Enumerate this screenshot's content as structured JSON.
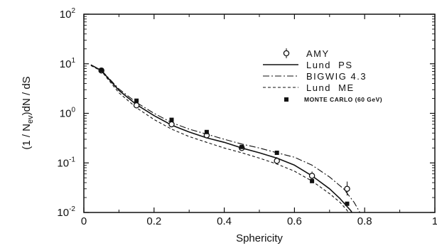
{
  "chart_data": {
    "type": "line",
    "xlabel": "Sphericity",
    "ylabel": "(1 / N_ev) dN / dS",
    "ylabel_parts": {
      "a": "(1 / N",
      "sub": "ev",
      "b": ")dN / dS"
    },
    "xlim": [
      0,
      1
    ],
    "ylim": [
      0.01,
      100
    ],
    "yscale": "log",
    "x_ticks": [
      {
        "value": 0,
        "label": "0"
      },
      {
        "value": 0.2,
        "label": "0.2"
      },
      {
        "value": 0.4,
        "label": "0.4"
      },
      {
        "value": 0.6,
        "label": "0.6"
      },
      {
        "value": 0.8,
        "label": "0.8"
      },
      {
        "value": 1.0,
        "label": "1"
      }
    ],
    "y_ticks": [
      {
        "value": 0.01,
        "base": "10",
        "exp": "-2"
      },
      {
        "value": 0.1,
        "base": "10",
        "exp": "-1"
      },
      {
        "value": 1,
        "base": "10",
        "exp": "0"
      },
      {
        "value": 10,
        "base": "10",
        "exp": "1"
      },
      {
        "value": 100,
        "base": "10",
        "exp": "2"
      }
    ],
    "grid": false,
    "legend_position": "top-right",
    "series": [
      {
        "name": "AMY",
        "kind": "data-open-circle",
        "x": [
          0.05,
          0.15,
          0.25,
          0.35,
          0.45,
          0.55,
          0.65,
          0.75
        ],
        "y": [
          7.3,
          1.45,
          0.6,
          0.36,
          0.2,
          0.11,
          0.055,
          0.03
        ],
        "err_low": [
          7.0,
          1.3,
          0.55,
          0.32,
          0.18,
          0.095,
          0.045,
          0.022
        ],
        "err_high": [
          7.6,
          1.6,
          0.66,
          0.41,
          0.22,
          0.13,
          0.067,
          0.042
        ]
      },
      {
        "name": "Lund  PS",
        "kind": "line-solid",
        "x": [
          0.02,
          0.05,
          0.1,
          0.15,
          0.2,
          0.25,
          0.3,
          0.35,
          0.4,
          0.45,
          0.5,
          0.55,
          0.6,
          0.65,
          0.7,
          0.73,
          0.76,
          0.77
        ],
        "y": [
          9.5,
          7.3,
          2.9,
          1.5,
          0.9,
          0.58,
          0.42,
          0.32,
          0.26,
          0.2,
          0.16,
          0.125,
          0.09,
          0.055,
          0.03,
          0.019,
          0.011,
          0.0085
        ]
      },
      {
        "name": "BIGWIG 4.3",
        "kind": "line-dashdot",
        "x": [
          0.02,
          0.05,
          0.1,
          0.15,
          0.2,
          0.25,
          0.3,
          0.35,
          0.4,
          0.45,
          0.5,
          0.55,
          0.6,
          0.65,
          0.7,
          0.74,
          0.77,
          0.79
        ],
        "y": [
          9.5,
          7.4,
          3.1,
          1.65,
          1.0,
          0.65,
          0.48,
          0.38,
          0.3,
          0.24,
          0.2,
          0.16,
          0.13,
          0.09,
          0.052,
          0.03,
          0.016,
          0.009
        ]
      },
      {
        "name": "Lund  ME",
        "kind": "line-dashed",
        "x": [
          0.02,
          0.05,
          0.1,
          0.15,
          0.2,
          0.25,
          0.3,
          0.35,
          0.4,
          0.45,
          0.5,
          0.55,
          0.6,
          0.65,
          0.7,
          0.73,
          0.75,
          0.76
        ],
        "y": [
          9.2,
          7.1,
          2.6,
          1.3,
          0.75,
          0.48,
          0.34,
          0.26,
          0.2,
          0.16,
          0.125,
          0.095,
          0.068,
          0.043,
          0.024,
          0.016,
          0.011,
          0.0085
        ]
      },
      {
        "name": "MONTE CARLO (60 GeV)",
        "kind": "data-filled-square",
        "x": [
          0.05,
          0.15,
          0.25,
          0.35,
          0.45,
          0.55,
          0.65,
          0.75
        ],
        "y": [
          7.4,
          1.8,
          0.74,
          0.42,
          0.21,
          0.16,
          0.043,
          0.015
        ]
      }
    ]
  }
}
